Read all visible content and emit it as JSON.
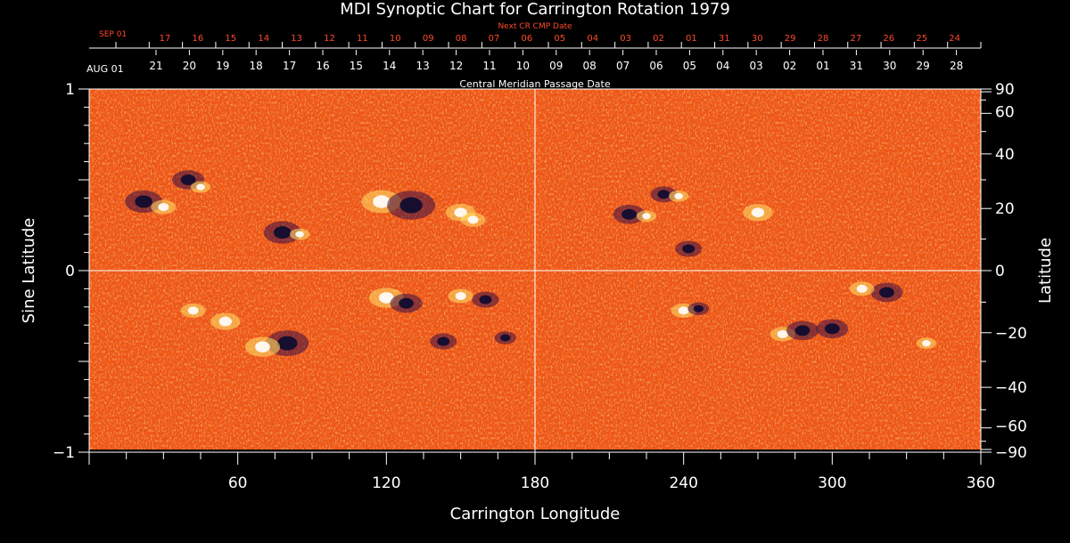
{
  "chart_data": {
    "type": "heatmap",
    "title": "MDI Synoptic Chart for Carrington Rotation 1979",
    "xlabel": "Carrington Longitude",
    "ylabel_left": "Sine Latitude",
    "ylabel_right": "Latitude",
    "xlim": [
      0,
      360
    ],
    "ylim": [
      -1,
      1
    ],
    "x_ticks": [
      60,
      120,
      180,
      240,
      300,
      360
    ],
    "y_ticks_left": [
      {
        "value": 1,
        "label": "1"
      },
      {
        "value": 0,
        "label": "0"
      },
      {
        "value": -1,
        "label": "−1"
      }
    ],
    "y_ticks_right": [
      {
        "deg": 90,
        "label": "90"
      },
      {
        "deg": 60,
        "label": "60"
      },
      {
        "deg": 40,
        "label": "40"
      },
      {
        "deg": 20,
        "label": "20"
      },
      {
        "deg": 0,
        "label": "0"
      },
      {
        "deg": -20,
        "label": "−20"
      },
      {
        "deg": -40,
        "label": "−40"
      },
      {
        "deg": -60,
        "label": "−60"
      },
      {
        "deg": -90,
        "label": "−90"
      }
    ],
    "next_cr_label": "Next CR CMP Date",
    "next_cr_month": "SEP 01",
    "next_cr_dates": [
      "17",
      "16",
      "15",
      "14",
      "13",
      "12",
      "11",
      "10",
      "09",
      "08",
      "07",
      "06",
      "05",
      "04",
      "03",
      "02",
      "01",
      "31",
      "30",
      "29",
      "28",
      "27",
      "26",
      "25",
      "24"
    ],
    "cmp_label": "Central Meridian Passage Date",
    "cmp_month": "AUG 01",
    "cmp_dates": [
      "21",
      "20",
      "19",
      "18",
      "17",
      "16",
      "15",
      "14",
      "13",
      "12",
      "11",
      "10",
      "09",
      "08",
      "07",
      "06",
      "05",
      "04",
      "03",
      "02",
      "01",
      "31",
      "30",
      "29",
      "28"
    ],
    "colors": {
      "background": "#000000",
      "field_base": "#e8420f",
      "positive_polarity": "#fff3a8",
      "negative_polarity": "#1a0f4a",
      "top_date_color": "#ff4a2a",
      "axis_color": "#ffffff"
    }
  }
}
